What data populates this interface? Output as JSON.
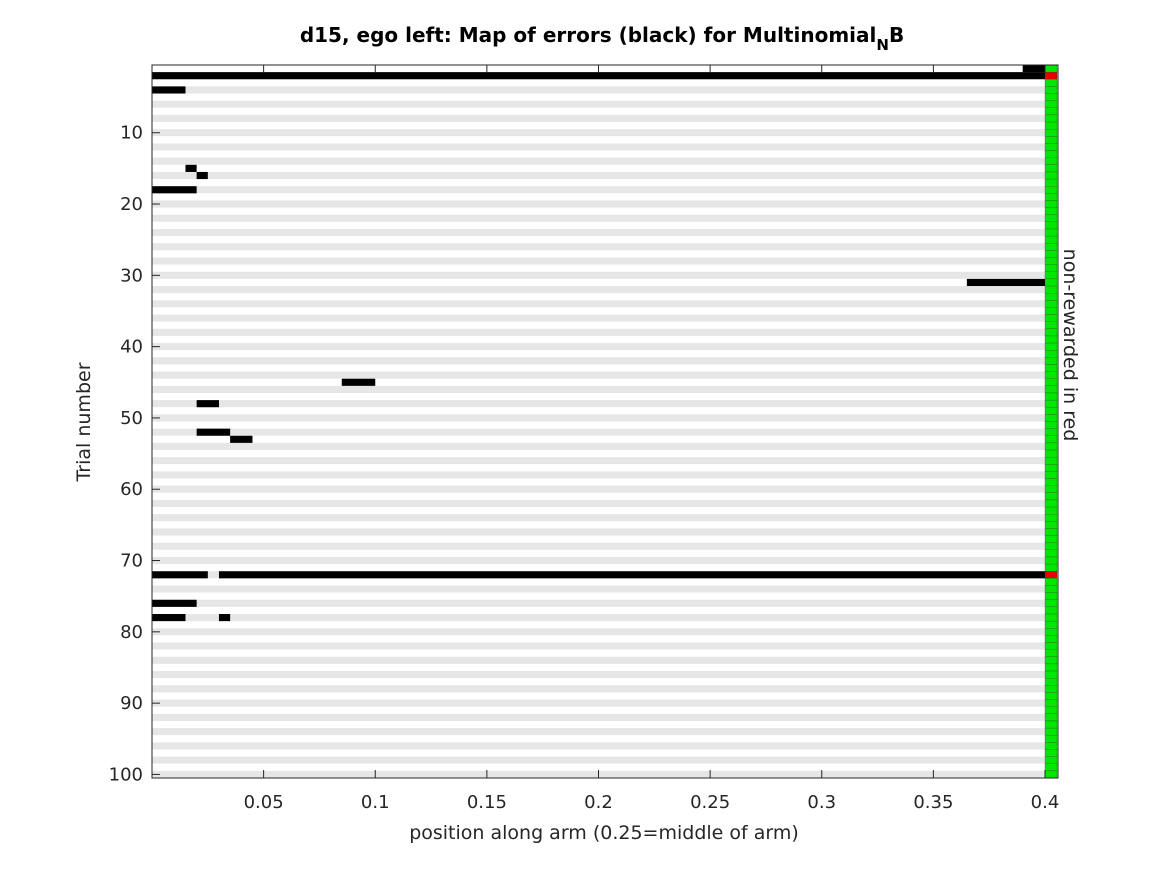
{
  "chart_data": {
    "type": "heatmap",
    "title": "d15, ego left: Map of errors (black) for Multinomial",
    "title_subscript": "N",
    "title_suffix": "B",
    "xlabel": "position along arm (0.25=middle of arm)",
    "ylabel": "Trial number",
    "right_label": "non-rewarded in red",
    "xlim": [
      0,
      0.4
    ],
    "ylim": [
      1,
      100
    ],
    "y_reversed": true,
    "x_ticks": [
      0.05,
      0.1,
      0.15,
      0.2,
      0.25,
      0.3,
      0.35,
      0.4
    ],
    "x_tick_labels": [
      "0.05",
      "0.1",
      "0.15",
      "0.2",
      "0.25",
      "0.3",
      "0.35",
      "0.4"
    ],
    "y_ticks": [
      10,
      20,
      30,
      40,
      50,
      60,
      70,
      80,
      90,
      100
    ],
    "y_tick_labels": [
      "10",
      "20",
      "30",
      "40",
      "50",
      "60",
      "70",
      "80",
      "90",
      "100"
    ],
    "trial_count": 100,
    "error_segments": [
      {
        "trial": 1,
        "x_start": 0.39,
        "x_end": 0.4
      },
      {
        "trial": 2,
        "x_start": 0.0,
        "x_end": 0.4
      },
      {
        "trial": 4,
        "x_start": 0.0,
        "x_end": 0.015
      },
      {
        "trial": 15,
        "x_start": 0.015,
        "x_end": 0.02
      },
      {
        "trial": 16,
        "x_start": 0.02,
        "x_end": 0.025
      },
      {
        "trial": 18,
        "x_start": 0.0,
        "x_end": 0.02
      },
      {
        "trial": 31,
        "x_start": 0.365,
        "x_end": 0.4
      },
      {
        "trial": 45,
        "x_start": 0.085,
        "x_end": 0.1
      },
      {
        "trial": 48,
        "x_start": 0.02,
        "x_end": 0.03
      },
      {
        "trial": 52,
        "x_start": 0.02,
        "x_end": 0.035
      },
      {
        "trial": 53,
        "x_start": 0.035,
        "x_end": 0.045
      },
      {
        "trial": 72,
        "x_start": 0.0,
        "x_end": 0.025
      },
      {
        "trial": 72,
        "x_start": 0.03,
        "x_end": 0.4
      },
      {
        "trial": 76,
        "x_start": 0.0,
        "x_end": 0.02
      },
      {
        "trial": 78,
        "x_start": 0.0,
        "x_end": 0.015
      },
      {
        "trial": 78,
        "x_start": 0.03,
        "x_end": 0.035
      }
    ],
    "non_rewarded_trials": [
      2,
      72
    ],
    "colors": {
      "error": "#000000",
      "stripe_even": "#e6e6e6",
      "stripe_odd": "#ffffff",
      "rewarded": "#00e600",
      "non_rewarded": "#e60000"
    }
  }
}
